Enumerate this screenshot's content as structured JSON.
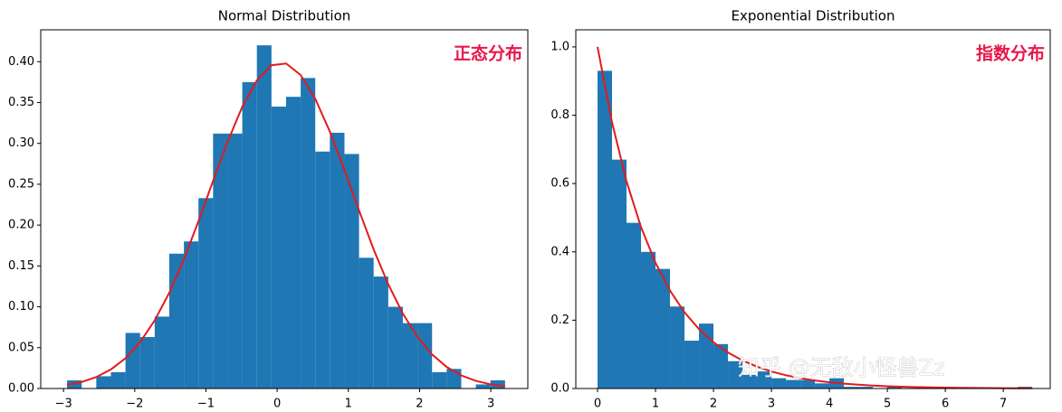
{
  "chart_data": [
    {
      "type": "histogram",
      "title": "Normal Distribution",
      "annotation": "正态分布",
      "color": "#1f77b4",
      "bins": [
        -2.95,
        -2.745,
        -2.54,
        -2.335,
        -2.13,
        -1.925,
        -1.72,
        -1.515,
        -1.31,
        -1.105,
        -0.9,
        -0.695,
        -0.49,
        -0.285,
        -0.08,
        0.125,
        0.33,
        0.535,
        0.74,
        0.945,
        1.15,
        1.355,
        1.56,
        1.765,
        1.97,
        2.175,
        2.38,
        2.585,
        2.79,
        2.995,
        3.2
      ],
      "values": [
        0.01,
        0,
        0.015,
        0.02,
        0.068,
        0.063,
        0.088,
        0.165,
        0.18,
        0.233,
        0.312,
        0.312,
        0.375,
        0.42,
        0.345,
        0.357,
        0.38,
        0.29,
        0.313,
        0.287,
        0.16,
        0.137,
        0.1,
        0.08,
        0.08,
        0.02,
        0.024,
        0,
        0.005,
        0.01
      ],
      "line": {
        "color": "#e31a1c",
        "x": [
          -2.95,
          -2.745,
          -2.54,
          -2.335,
          -2.13,
          -1.925,
          -1.72,
          -1.515,
          -1.31,
          -1.105,
          -0.9,
          -0.695,
          -0.49,
          -0.285,
          -0.08,
          0.125,
          0.33,
          0.535,
          0.74,
          0.945,
          1.15,
          1.355,
          1.56,
          1.765,
          1.97,
          2.175,
          2.38,
          2.585,
          2.79,
          2.995,
          3.2
        ],
        "values": [
          0.0044,
          0.008,
          0.014,
          0.0233,
          0.037,
          0.0567,
          0.0833,
          0.1172,
          0.1582,
          0.2047,
          0.2541,
          0.3022,
          0.3448,
          0.3771,
          0.3956,
          0.3978,
          0.3837,
          0.3546,
          0.3144,
          0.2673,
          0.2179,
          0.1702,
          0.1276,
          0.0916,
          0.0632,
          0.0417,
          0.0264,
          0.016,
          0.0093,
          0.0052,
          0.0028
        ]
      },
      "xlim": [
        -3.32,
        3.52
      ],
      "ylim": [
        0,
        0.439
      ],
      "xticks": [
        {
          "value": -3,
          "label": "−3"
        },
        {
          "value": -2,
          "label": "−2"
        },
        {
          "value": -1,
          "label": "−1"
        },
        0,
        1,
        2,
        3
      ],
      "yticks": [
        {
          "value": 0,
          "label": "0.00"
        },
        {
          "value": 0.05,
          "label": "0.05"
        },
        {
          "value": 0.1,
          "label": "0.10"
        },
        {
          "value": 0.15,
          "label": "0.15"
        },
        {
          "value": 0.2,
          "label": "0.20"
        },
        {
          "value": 0.25,
          "label": "0.25"
        },
        {
          "value": 0.3,
          "label": "0.30"
        },
        {
          "value": 0.35,
          "label": "0.35"
        },
        {
          "value": 0.4,
          "label": "0.40"
        }
      ]
    },
    {
      "type": "histogram",
      "title": "Exponential Distribution",
      "annotation": "指数分布",
      "color": "#1f77b4",
      "bins": [
        0,
        0.25,
        0.5,
        0.75,
        1,
        1.25,
        1.5,
        1.75,
        2,
        2.25,
        2.5,
        2.75,
        3,
        3.25,
        3.5,
        3.75,
        4,
        4.25,
        4.5,
        4.75,
        5,
        5.25,
        5.5,
        5.75,
        6,
        6.25,
        6.5,
        6.75,
        7,
        7.25,
        7.5
      ],
      "values": [
        0.93,
        0.67,
        0.485,
        0.4,
        0.35,
        0.24,
        0.14,
        0.19,
        0.13,
        0.08,
        0.04,
        0.05,
        0.03,
        0.025,
        0.025,
        0.015,
        0.03,
        0.005,
        0.005,
        0,
        0.005,
        0,
        0,
        0,
        0,
        0,
        0,
        0,
        0,
        0.005
      ],
      "line": {
        "color": "#e31a1c",
        "x": [
          0,
          0.25,
          0.5,
          0.75,
          1,
          1.25,
          1.5,
          1.75,
          2,
          2.25,
          2.5,
          2.75,
          3,
          3.25,
          3.5,
          3.75,
          4,
          4.25,
          4.5,
          4.75,
          5,
          5.25,
          5.5,
          5.75,
          6,
          6.25,
          6.5,
          6.75,
          7,
          7.25,
          7.5
        ],
        "values": [
          1,
          0.7788,
          0.6065,
          0.4724,
          0.3679,
          0.2865,
          0.2231,
          0.1738,
          0.1353,
          0.1054,
          0.0821,
          0.0639,
          0.0498,
          0.0388,
          0.0302,
          0.0235,
          0.0183,
          0.0143,
          0.0111,
          0.0087,
          0.0067,
          0.0052,
          0.0041,
          0.0032,
          0.0025,
          0.0019,
          0.0015,
          0.0012,
          0.0009,
          0.0007,
          0.0006
        ]
      },
      "xlim": [
        -0.375,
        7.81
      ],
      "ylim": [
        0,
        1.05
      ],
      "xticks": [
        0,
        1,
        2,
        3,
        4,
        5,
        6,
        7
      ],
      "yticks": [
        {
          "value": 0,
          "label": "0.0"
        },
        {
          "value": 0.2,
          "label": "0.2"
        },
        {
          "value": 0.4,
          "label": "0.4"
        },
        {
          "value": 0.6,
          "label": "0.6"
        },
        {
          "value": 0.8,
          "label": "0.8"
        },
        {
          "value": 1,
          "label": "1.0"
        }
      ]
    }
  ],
  "watermark": "知乎 @无敌小怪兽Zz"
}
